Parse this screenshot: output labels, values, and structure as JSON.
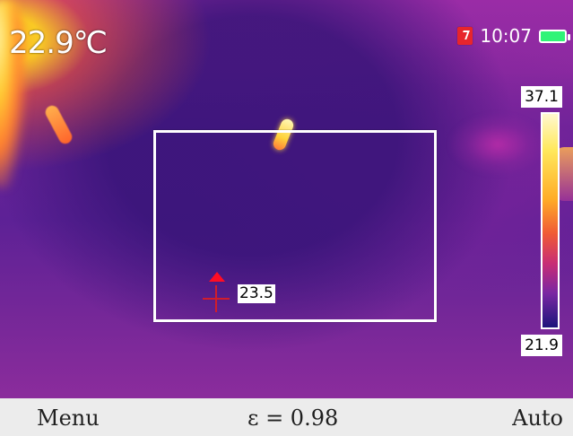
{
  "display": {
    "ambient_temperature": "22.9℃",
    "time": "10:07",
    "battery_color": "#2ff477",
    "sd_icon_color": "#e7252c"
  },
  "thermal_view": {
    "box_color": "#ffffff",
    "spot_temperature": "23.5",
    "scale_max": "37.1",
    "scale_min": "21.9"
  },
  "bottom_bar": {
    "menu_label": "Menu",
    "emissivity": "ε = 0.98",
    "auto_label": "Auto"
  },
  "icons": {
    "sd_card": "sd-card-icon",
    "battery": "battery-icon",
    "crosshair": "crosshair-icon",
    "spot_marker": "triangle-up-icon"
  }
}
